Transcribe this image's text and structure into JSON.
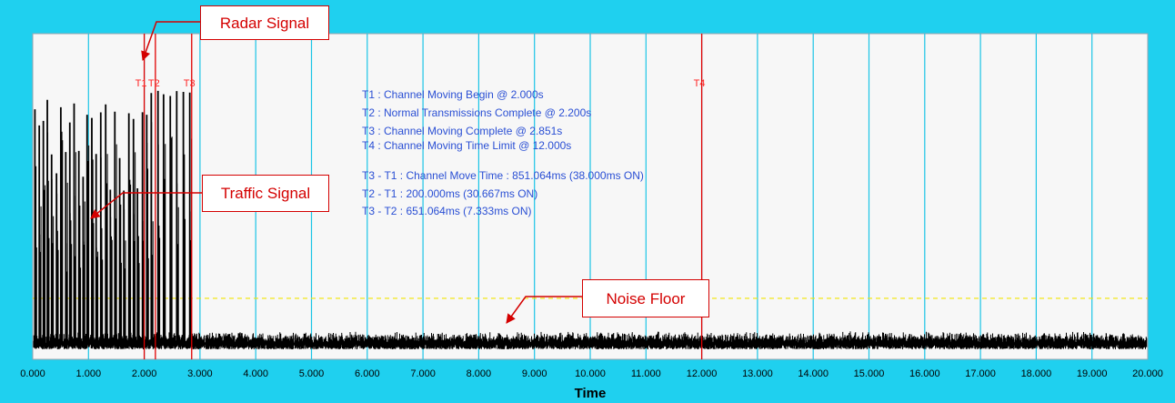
{
  "colors": {
    "frame": "#1fd0ef",
    "plot_bg": "#f7f7f7",
    "grid": "#19c4e6",
    "marker": "#e00000",
    "signal": "#000000",
    "threshold": "#f2e600",
    "annotation": "#2a4fd4",
    "callout_border": "#d40000"
  },
  "chart_data": {
    "type": "line",
    "title": "",
    "xlabel": "Time",
    "ylabel": "",
    "xlim": [
      0,
      20
    ],
    "x_tick_labels": [
      "0.000",
      "1.000",
      "2.000",
      "3.000",
      "4.000",
      "5.000",
      "6.000",
      "7.000",
      "8.000",
      "9.000",
      "10.000",
      "11.000",
      "12.000",
      "13.000",
      "14.000",
      "15.000",
      "16.000",
      "17.000",
      "18.000",
      "19.000",
      "20.000"
    ],
    "grid": true,
    "markers": [
      {
        "label": "T1",
        "x": 2.0
      },
      {
        "label": "T2",
        "x": 2.2
      },
      {
        "label": "T3",
        "x": 2.851
      },
      {
        "label": "T4",
        "x": 12.0
      }
    ],
    "annotations": [
      "T1 : Channel Moving Begin @ 2.000s",
      "T2 : Normal Transmissions Complete @ 2.200s",
      "T3 : Channel Moving Complete @ 2.851s",
      "T4 : Channel Moving Time Limit @ 12.000s",
      "T3 - T1 : Channel Move Time : 851.064ms (38.000ms ON)",
      "T2 - T1 : 200.000ms (30.667ms ON)",
      "T3 - T2 : 651.064ms (7.333ms ON)"
    ],
    "threshold_level": 0.18,
    "signal": {
      "burst_start": 0.0,
      "burst_end": 2.85,
      "burst_level": 1.0,
      "noise_level": 0.05
    }
  },
  "callouts": {
    "radar": "Radar Signal",
    "traffic": "Traffic Signal",
    "noise": "Noise Floor"
  }
}
